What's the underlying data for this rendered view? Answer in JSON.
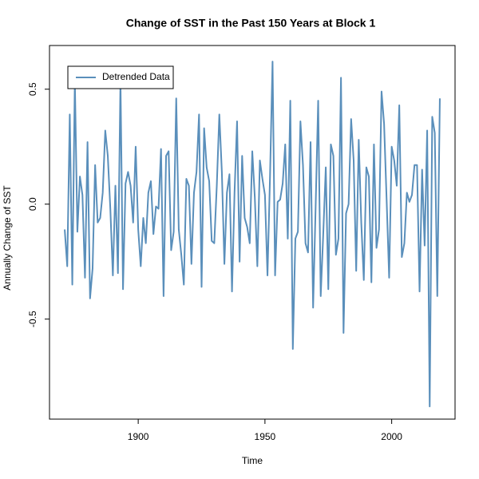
{
  "chart_data": {
    "type": "line",
    "title": "Change of SST in the Past 150 Years at Block 1",
    "x_label": "Time",
    "y_label": "Annually Change of SST",
    "x": [
      1871,
      1872,
      1873,
      1874,
      1875,
      1876,
      1877,
      1878,
      1879,
      1880,
      1881,
      1882,
      1883,
      1884,
      1885,
      1886,
      1887,
      1888,
      1889,
      1890,
      1891,
      1892,
      1893,
      1894,
      1895,
      1896,
      1897,
      1898,
      1899,
      1900,
      1901,
      1902,
      1903,
      1904,
      1905,
      1906,
      1907,
      1908,
      1909,
      1910,
      1911,
      1912,
      1913,
      1914,
      1915,
      1916,
      1917,
      1918,
      1919,
      1920,
      1921,
      1922,
      1923,
      1924,
      1925,
      1926,
      1927,
      1928,
      1929,
      1930,
      1931,
      1932,
      1933,
      1934,
      1935,
      1936,
      1937,
      1938,
      1939,
      1940,
      1941,
      1942,
      1943,
      1944,
      1945,
      1946,
      1947,
      1948,
      1949,
      1950,
      1951,
      1952,
      1953,
      1954,
      1955,
      1956,
      1957,
      1958,
      1959,
      1960,
      1961,
      1962,
      1963,
      1964,
      1965,
      1966,
      1967,
      1968,
      1969,
      1970,
      1971,
      1972,
      1973,
      1974,
      1975,
      1976,
      1977,
      1978,
      1979,
      1980,
      1981,
      1982,
      1983,
      1984,
      1985,
      1986,
      1987,
      1988,
      1989,
      1990,
      1991,
      1992,
      1993,
      1994,
      1995,
      1996,
      1997,
      1998,
      1999,
      2000,
      2001,
      2002,
      2003,
      2004,
      2005,
      2006,
      2007,
      2008,
      2009,
      2010,
      2011,
      2012,
      2013,
      2014,
      2015,
      2016,
      2017,
      2018,
      2019
    ],
    "series": [
      {
        "name": "Detrended Data",
        "color": "#5a8fbb",
        "values": [
          -0.11,
          -0.27,
          0.39,
          -0.35,
          0.54,
          -0.12,
          0.12,
          0.04,
          -0.32,
          0.27,
          -0.41,
          -0.28,
          0.17,
          -0.08,
          -0.06,
          0.05,
          0.32,
          0.21,
          -0.02,
          -0.31,
          0.08,
          -0.3,
          0.54,
          -0.37,
          0.09,
          0.14,
          0.08,
          -0.08,
          0.25,
          -0.11,
          -0.27,
          -0.06,
          -0.17,
          0.05,
          0.1,
          -0.13,
          -0.01,
          -0.02,
          0.24,
          -0.4,
          0.21,
          0.23,
          -0.2,
          -0.12,
          0.46,
          -0.11,
          -0.22,
          -0.35,
          0.11,
          0.08,
          -0.26,
          0.05,
          0.14,
          0.39,
          -0.36,
          0.33,
          0.16,
          0.1,
          -0.16,
          -0.17,
          0.08,
          0.39,
          0.14,
          -0.26,
          0.05,
          0.13,
          -0.38,
          0.05,
          0.36,
          -0.25,
          0.21,
          -0.06,
          -0.1,
          -0.17,
          0.23,
          0.03,
          -0.27,
          0.19,
          0.11,
          0.04,
          -0.31,
          0.12,
          0.62,
          -0.31,
          0.01,
          0.02,
          0.09,
          0.26,
          -0.15,
          0.45,
          -0.63,
          -0.15,
          -0.12,
          0.36,
          0.17,
          -0.17,
          -0.21,
          0.27,
          -0.45,
          -0.01,
          0.45,
          -0.4,
          -0.13,
          0.16,
          -0.37,
          0.26,
          0.21,
          -0.22,
          -0.15,
          0.55,
          -0.56,
          -0.04,
          0.0,
          0.37,
          0.19,
          -0.29,
          0.28,
          -0.08,
          -0.33,
          0.16,
          0.12,
          -0.34,
          0.26,
          -0.19,
          -0.11,
          0.49,
          0.35,
          0.02,
          -0.32,
          0.25,
          0.19,
          0.08,
          0.43,
          -0.23,
          -0.17,
          0.05,
          0.01,
          0.04,
          0.17,
          0.17,
          -0.38,
          0.15,
          -0.18,
          0.32,
          -0.88,
          0.38,
          0.31,
          -0.4,
          0.46
        ]
      }
    ],
    "xlim": [
      1865,
      2025
    ],
    "ylim": [
      -0.935,
      0.69
    ],
    "xticks": [
      1900,
      1950,
      2000
    ],
    "yticks": [
      -0.5,
      {
        "value": 0,
        "label": "0.0"
      },
      0.5
    ],
    "legend": "top-left"
  }
}
